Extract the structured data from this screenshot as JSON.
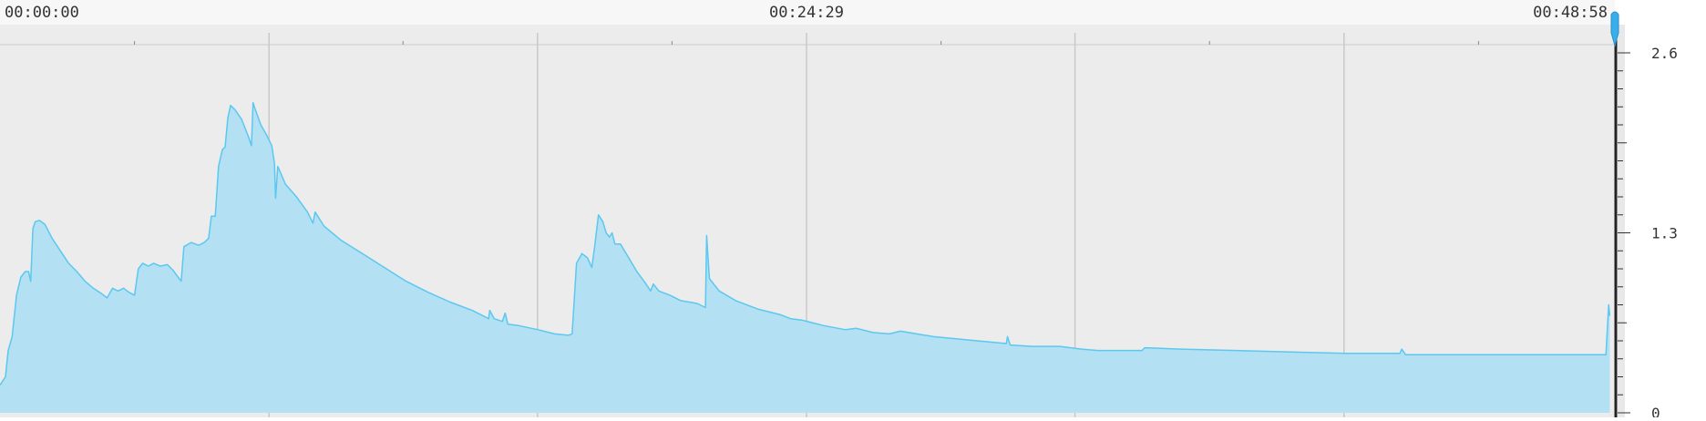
{
  "chart_data": {
    "type": "area",
    "x_unit": "seconds",
    "xlim": [
      0,
      2938
    ],
    "ylim": [
      0,
      2.6
    ],
    "x_tick_labels": [
      {
        "value": 0,
        "label": "00:00:00"
      },
      {
        "value": 1469,
        "label": "00:24:29"
      },
      {
        "value": 2938,
        "label": "00:48:58"
      }
    ],
    "y_ticks": [
      {
        "value": 0,
        "label": "0"
      },
      {
        "value": 1.3,
        "label": "1.3"
      },
      {
        "value": 2.6,
        "label": "2.6"
      }
    ],
    "major_gridlines_x": [
      490,
      979,
      1469,
      1958,
      2448
    ],
    "minor_ticks_x": [
      245,
      734,
      1224,
      1714,
      2203,
      2693
    ],
    "series": [
      {
        "points": [
          [
            0,
            0.2
          ],
          [
            10,
            0.26
          ],
          [
            15,
            0.45
          ],
          [
            22,
            0.55
          ],
          [
            30,
            0.85
          ],
          [
            38,
            0.98
          ],
          [
            46,
            1.02
          ],
          [
            52,
            1.02
          ],
          [
            56,
            0.95
          ],
          [
            60,
            1.33
          ],
          [
            64,
            1.38
          ],
          [
            72,
            1.39
          ],
          [
            82,
            1.36
          ],
          [
            95,
            1.26
          ],
          [
            110,
            1.17
          ],
          [
            125,
            1.08
          ],
          [
            140,
            1.02
          ],
          [
            155,
            0.95
          ],
          [
            170,
            0.9
          ],
          [
            185,
            0.86
          ],
          [
            195,
            0.83
          ],
          [
            205,
            0.9
          ],
          [
            215,
            0.88
          ],
          [
            225,
            0.9
          ],
          [
            235,
            0.87
          ],
          [
            245,
            0.85
          ],
          [
            252,
            1.04
          ],
          [
            260,
            1.08
          ],
          [
            270,
            1.06
          ],
          [
            280,
            1.08
          ],
          [
            292,
            1.06
          ],
          [
            305,
            1.07
          ],
          [
            315,
            1.03
          ],
          [
            330,
            0.95
          ],
          [
            335,
            1.2
          ],
          [
            348,
            1.23
          ],
          [
            362,
            1.21
          ],
          [
            372,
            1.23
          ],
          [
            380,
            1.26
          ],
          [
            385,
            1.42
          ],
          [
            392,
            1.42
          ],
          [
            398,
            1.78
          ],
          [
            405,
            1.9
          ],
          [
            410,
            1.92
          ],
          [
            415,
            2.13
          ],
          [
            420,
            2.22
          ],
          [
            428,
            2.19
          ],
          [
            440,
            2.12
          ],
          [
            452,
            2.0
          ],
          [
            458,
            1.93
          ],
          [
            461,
            2.24
          ],
          [
            466,
            2.18
          ],
          [
            475,
            2.08
          ],
          [
            485,
            2.01
          ],
          [
            495,
            1.93
          ],
          [
            500,
            1.8
          ],
          [
            502,
            1.55
          ],
          [
            506,
            1.78
          ],
          [
            520,
            1.65
          ],
          [
            540,
            1.56
          ],
          [
            560,
            1.45
          ],
          [
            570,
            1.37
          ],
          [
            574,
            1.45
          ],
          [
            590,
            1.35
          ],
          [
            620,
            1.25
          ],
          [
            660,
            1.15
          ],
          [
            700,
            1.05
          ],
          [
            740,
            0.95
          ],
          [
            780,
            0.87
          ],
          [
            820,
            0.8
          ],
          [
            860,
            0.74
          ],
          [
            890,
            0.68
          ],
          [
            892,
            0.74
          ],
          [
            900,
            0.68
          ],
          [
            915,
            0.66
          ],
          [
            920,
            0.72
          ],
          [
            925,
            0.64
          ],
          [
            945,
            0.63
          ],
          [
            980,
            0.6
          ],
          [
            1000,
            0.58
          ],
          [
            1010,
            0.57
          ],
          [
            1035,
            0.56
          ],
          [
            1042,
            0.57
          ],
          [
            1050,
            1.08
          ],
          [
            1060,
            1.15
          ],
          [
            1070,
            1.12
          ],
          [
            1078,
            1.05
          ],
          [
            1083,
            1.2
          ],
          [
            1090,
            1.43
          ],
          [
            1098,
            1.38
          ],
          [
            1104,
            1.3
          ],
          [
            1110,
            1.27
          ],
          [
            1115,
            1.3
          ],
          [
            1120,
            1.22
          ],
          [
            1130,
            1.22
          ],
          [
            1145,
            1.12
          ],
          [
            1160,
            1.02
          ],
          [
            1175,
            0.94
          ],
          [
            1185,
            0.88
          ],
          [
            1190,
            0.93
          ],
          [
            1200,
            0.88
          ],
          [
            1220,
            0.85
          ],
          [
            1240,
            0.81
          ],
          [
            1270,
            0.79
          ],
          [
            1285,
            0.76
          ],
          [
            1287,
            1.28
          ],
          [
            1292,
            0.97
          ],
          [
            1310,
            0.88
          ],
          [
            1340,
            0.81
          ],
          [
            1380,
            0.75
          ],
          [
            1420,
            0.71
          ],
          [
            1440,
            0.68
          ],
          [
            1460,
            0.67
          ],
          [
            1500,
            0.63
          ],
          [
            1540,
            0.6
          ],
          [
            1560,
            0.61
          ],
          [
            1590,
            0.58
          ],
          [
            1620,
            0.57
          ],
          [
            1640,
            0.59
          ],
          [
            1700,
            0.55
          ],
          [
            1780,
            0.52
          ],
          [
            1833,
            0.5
          ],
          [
            1835,
            0.55
          ],
          [
            1840,
            0.49
          ],
          [
            1880,
            0.48
          ],
          [
            1930,
            0.48
          ],
          [
            1970,
            0.46
          ],
          [
            2000,
            0.45
          ],
          [
            2050,
            0.45
          ],
          [
            2080,
            0.45
          ],
          [
            2085,
            0.47
          ],
          [
            2150,
            0.46
          ],
          [
            2250,
            0.45
          ],
          [
            2350,
            0.44
          ],
          [
            2450,
            0.43
          ],
          [
            2550,
            0.43
          ],
          [
            2553,
            0.46
          ],
          [
            2560,
            0.42
          ],
          [
            2650,
            0.42
          ],
          [
            2750,
            0.42
          ],
          [
            2850,
            0.42
          ],
          [
            2925,
            0.42
          ],
          [
            2930,
            0.78
          ],
          [
            2932,
            0.7
          ]
        ]
      }
    ]
  },
  "colors": {
    "plot_bg": "#ececec",
    "top_bar_bg": "#f7f7f7",
    "area_fill": "#b3e0f2",
    "area_line": "#5bc8f0",
    "grid": "#c9c9c9",
    "marker": "#3aaeea",
    "axis_text": "#333333"
  },
  "controls": {
    "playhead_icon": "playhead-marker-icon"
  }
}
